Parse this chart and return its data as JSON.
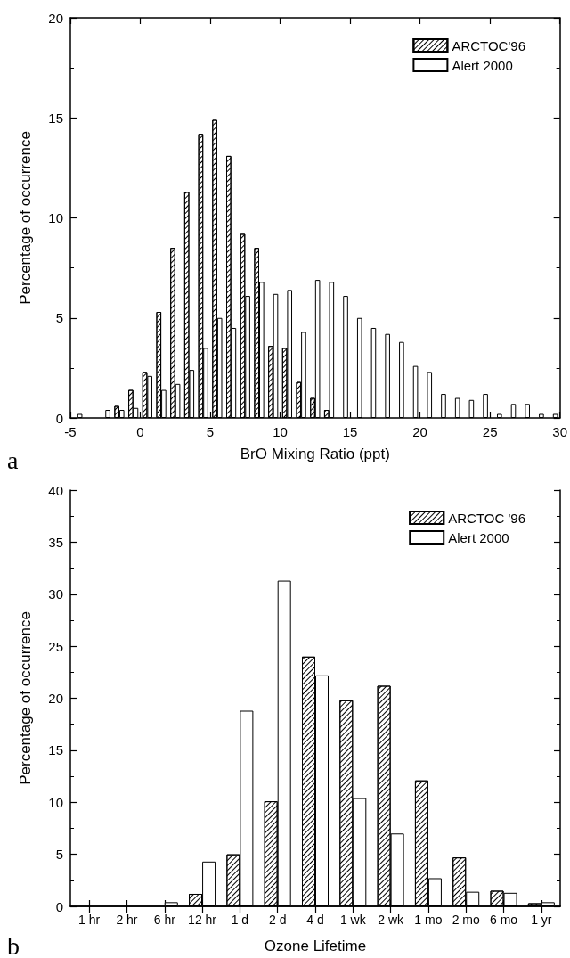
{
  "chart_data": [
    {
      "type": "bar",
      "xlabel": "BrO Mixing Ratio (ppt)",
      "ylabel": "Percentage of occurrence",
      "annotations": [
        "a"
      ],
      "x": [
        -4.5,
        -3.5,
        -2.5,
        -1.5,
        -0.5,
        0.5,
        1.5,
        2.5,
        3.5,
        4.5,
        5.5,
        6.5,
        7.5,
        8.5,
        9.5,
        10.5,
        11.5,
        12.5,
        13.5,
        14.5,
        15.5,
        16.5,
        17.5,
        18.5,
        19.5,
        20.5,
        21.5,
        22.5,
        23.5,
        24.5,
        25.5,
        26.5,
        27.5,
        28.5,
        29.5
      ],
      "xlim": [
        -5,
        30
      ],
      "xticks": [
        -5,
        0,
        5,
        10,
        15,
        20,
        25,
        30
      ],
      "ylim": [
        0,
        20
      ],
      "yticks": [
        0,
        5,
        10,
        15,
        20
      ],
      "legend": "top right",
      "series": [
        {
          "name": "ARCTOC'96",
          "color": "#000000",
          "values": [
            null,
            null,
            null,
            0.6,
            1.4,
            2.3,
            5.3,
            8.5,
            11.3,
            14.2,
            14.9,
            13.1,
            9.2,
            8.5,
            3.6,
            3.5,
            1.8,
            1.0,
            0.4,
            null,
            null,
            null,
            null,
            null,
            null,
            null,
            null,
            null,
            null,
            null,
            null,
            null,
            null,
            null,
            null
          ]
        },
        {
          "name": "Alert 2000",
          "color": "#ffffff",
          "values": [
            0.2,
            null,
            0.4,
            0.4,
            0.5,
            2.1,
            1.4,
            1.7,
            2.4,
            3.5,
            5.0,
            4.5,
            6.1,
            6.8,
            6.2,
            6.4,
            4.3,
            6.9,
            6.8,
            6.1,
            5.0,
            4.5,
            4.2,
            3.8,
            2.6,
            2.3,
            1.2,
            1.0,
            0.9,
            1.2,
            0.2,
            0.7,
            0.7,
            0.2,
            0.2
          ]
        }
      ]
    },
    {
      "type": "bar",
      "xlabel": "Ozone Lifetime",
      "ylabel": "Percentage of occurrence",
      "annotations": [
        "b"
      ],
      "categories": [
        "1 hr",
        "2 hr",
        "6 hr",
        "12 hr",
        "1 d",
        "2 d",
        "4 d",
        "1 wk",
        "2 wk",
        "1 mo",
        "2 mo",
        "6 mo",
        "1 yr"
      ],
      "ylim": [
        0,
        40
      ],
      "yticks": [
        0,
        5,
        10,
        15,
        20,
        25,
        30,
        35,
        40
      ],
      "legend": "top right",
      "series": [
        {
          "name": "ARCTOC '96",
          "color": "#000000",
          "values": [
            null,
            null,
            null,
            1.2,
            5.0,
            10.1,
            24.0,
            19.8,
            21.2,
            12.1,
            4.7,
            1.5,
            0.3
          ]
        },
        {
          "name": "Alert 2000",
          "color": "#ffffff",
          "values": [
            null,
            null,
            0.4,
            4.3,
            18.8,
            31.3,
            22.2,
            10.4,
            7.0,
            2.7,
            1.4,
            1.3,
            0.4
          ]
        }
      ]
    }
  ]
}
